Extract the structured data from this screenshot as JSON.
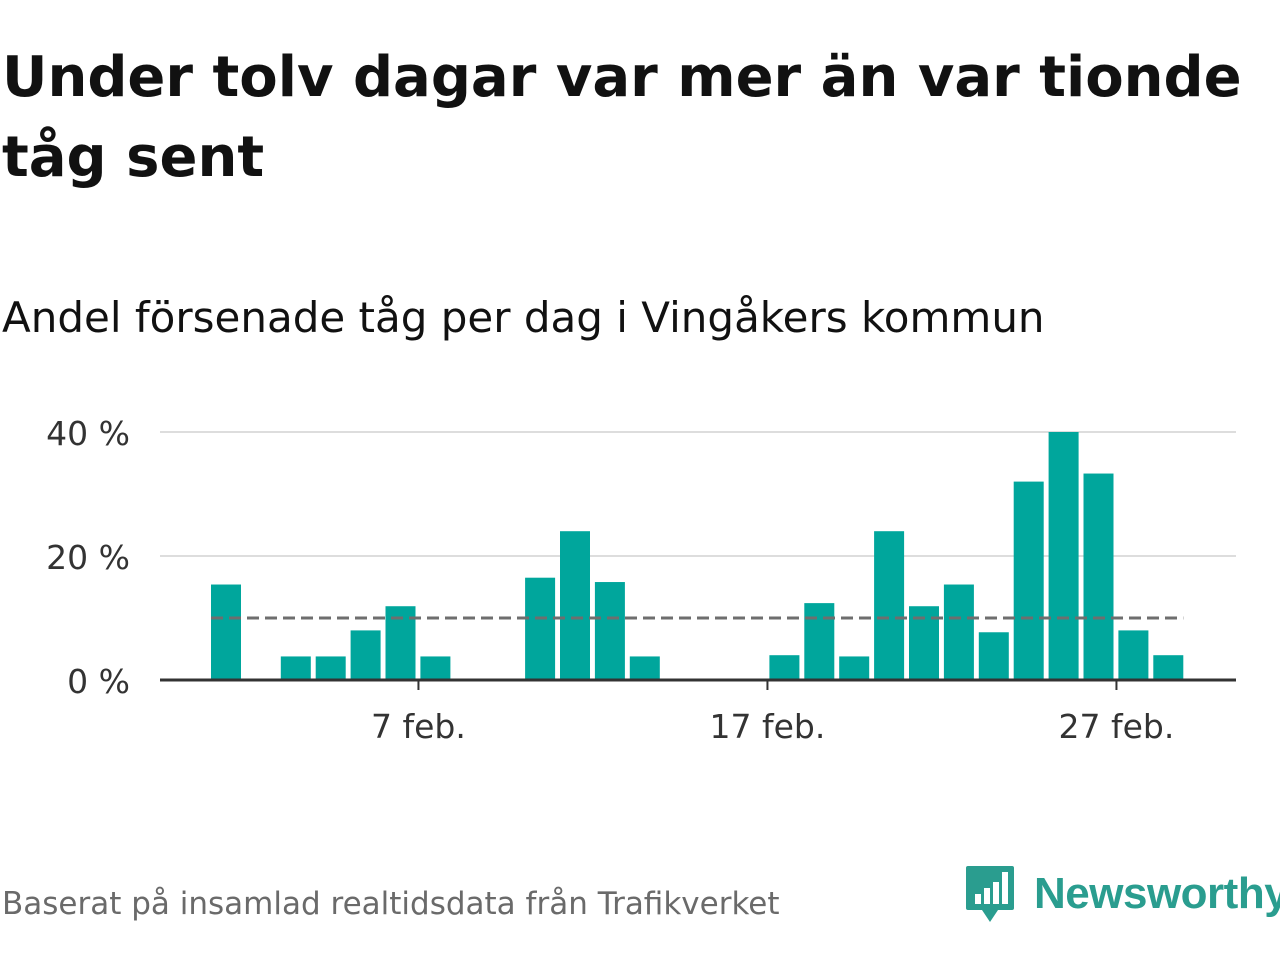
{
  "title": "Under tolv dagar var mer än var tionde tåg sent",
  "subtitle": "Andel försenade tåg per dag i Vingåkers kommun",
  "source": "Baserat på insamlad realtidsdata från Trafikverket",
  "brand": {
    "name": "Newsworthy",
    "icon": "newsworthy-logo-icon"
  },
  "colors": {
    "bar": "#00a69c",
    "reference": "#6e6e6e",
    "grid": "#dddddd",
    "axis": "#333333"
  },
  "chart_data": {
    "type": "bar",
    "x_type": "date",
    "x": [
      "2024-02-01",
      "2024-02-02",
      "2024-02-03",
      "2024-02-04",
      "2024-02-05",
      "2024-02-06",
      "2024-02-07",
      "2024-02-08",
      "2024-02-09",
      "2024-02-10",
      "2024-02-11",
      "2024-02-12",
      "2024-02-13",
      "2024-02-14",
      "2024-02-15",
      "2024-02-16",
      "2024-02-17",
      "2024-02-18",
      "2024-02-19",
      "2024-02-20",
      "2024-02-21",
      "2024-02-22",
      "2024-02-23",
      "2024-02-24",
      "2024-02-25",
      "2024-02-26",
      "2024-02-27",
      "2024-02-28"
    ],
    "values": [
      15.4,
      0,
      3.8,
      3.8,
      8,
      11.9,
      3.8,
      0,
      0,
      16.5,
      24,
      15.8,
      3.8,
      0,
      0,
      0,
      4,
      12.4,
      3.8,
      24,
      11.9,
      15.4,
      7.7,
      32,
      40,
      33.3,
      8,
      4
    ],
    "reference_line": {
      "value": 10,
      "style": "dashed"
    },
    "y_ticks": [
      0,
      20,
      40
    ],
    "y_tick_labels": [
      "0 %",
      "20 %",
      "40 %"
    ],
    "x_ticks": [
      "2024-02-07",
      "2024-02-17",
      "2024-02-27"
    ],
    "x_tick_labels": [
      "7 feb.",
      "17 feb.",
      "27 feb."
    ],
    "ylim": [
      0,
      40
    ],
    "grid": true,
    "legend": false
  }
}
